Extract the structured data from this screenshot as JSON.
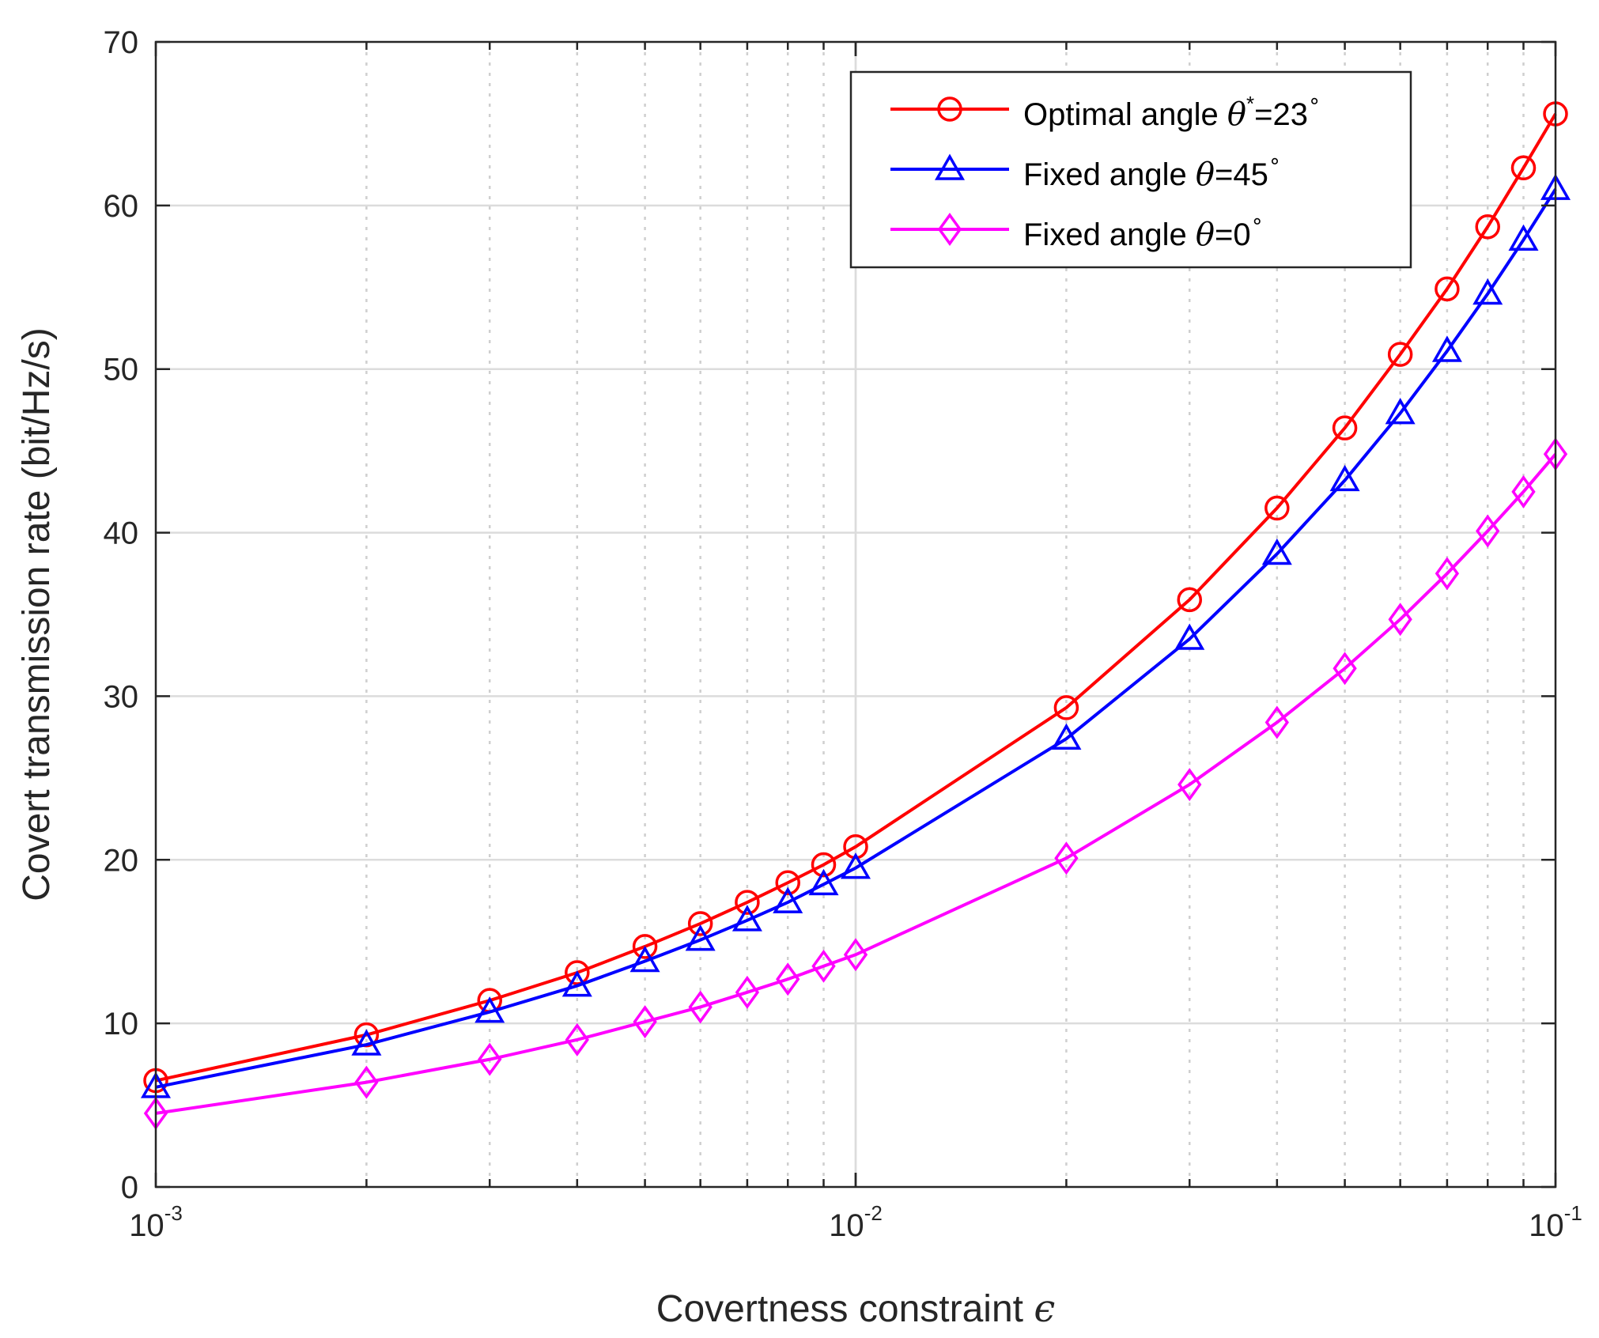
{
  "chart_data": {
    "type": "line",
    "xscale": "log",
    "xlim": [
      0.001,
      0.1
    ],
    "ylim": [
      0,
      70
    ],
    "xlabel": "Covertness constraint",
    "xlabel_symbol": "ϵ",
    "ylabel": "Covert transmission rate (bit/Hz/s)",
    "grid": true,
    "legend_position": "top-right",
    "x_ticks": [
      {
        "base": "10",
        "exp": "-3"
      },
      {
        "base": "10",
        "exp": "-2"
      },
      {
        "base": "10",
        "exp": "-1"
      }
    ],
    "y_ticks": [
      "0",
      "10",
      "20",
      "30",
      "40",
      "50",
      "60",
      "70"
    ],
    "x": [
      0.001,
      0.002,
      0.003,
      0.004,
      0.005,
      0.006,
      0.007,
      0.008,
      0.009,
      0.01,
      0.02,
      0.03,
      0.04,
      0.05,
      0.06,
      0.07,
      0.08,
      0.09,
      0.1
    ],
    "series": [
      {
        "name": "Optimal angle θ*=23°",
        "legend_text": "Optimal angle ",
        "legend_symbol": "θ",
        "legend_sup": "*",
        "legend_tail": "=23",
        "legend_deg": "∘",
        "color": "#ff0000",
        "marker": "circle",
        "values": [
          6.5,
          9.3,
          11.4,
          13.1,
          14.7,
          16.1,
          17.4,
          18.6,
          19.7,
          20.8,
          29.3,
          35.9,
          41.5,
          46.4,
          50.9,
          54.9,
          58.7,
          62.3,
          65.6
        ]
      },
      {
        "name": "Fixed angle θ=45°",
        "legend_text": "Fixed angle ",
        "legend_symbol": "θ",
        "legend_sup": "",
        "legend_tail": "=45",
        "legend_deg": "∘",
        "color": "#0000ff",
        "marker": "triangle",
        "values": [
          6.1,
          8.7,
          10.7,
          12.3,
          13.8,
          15.1,
          16.3,
          17.4,
          18.5,
          19.5,
          27.4,
          33.5,
          38.7,
          43.2,
          47.3,
          51.1,
          54.6,
          57.9,
          61.0
        ]
      },
      {
        "name": "Fixed angle θ=0°",
        "legend_text": "Fixed angle ",
        "legend_symbol": "θ",
        "legend_sup": "",
        "legend_tail": "=0",
        "legend_deg": "∘",
        "color": "#ff00ff",
        "marker": "diamond",
        "values": [
          4.5,
          6.4,
          7.8,
          9.0,
          10.1,
          11.0,
          11.9,
          12.7,
          13.5,
          14.2,
          20.1,
          24.6,
          28.4,
          31.7,
          34.7,
          37.5,
          40.1,
          42.5,
          44.8
        ]
      }
    ]
  }
}
